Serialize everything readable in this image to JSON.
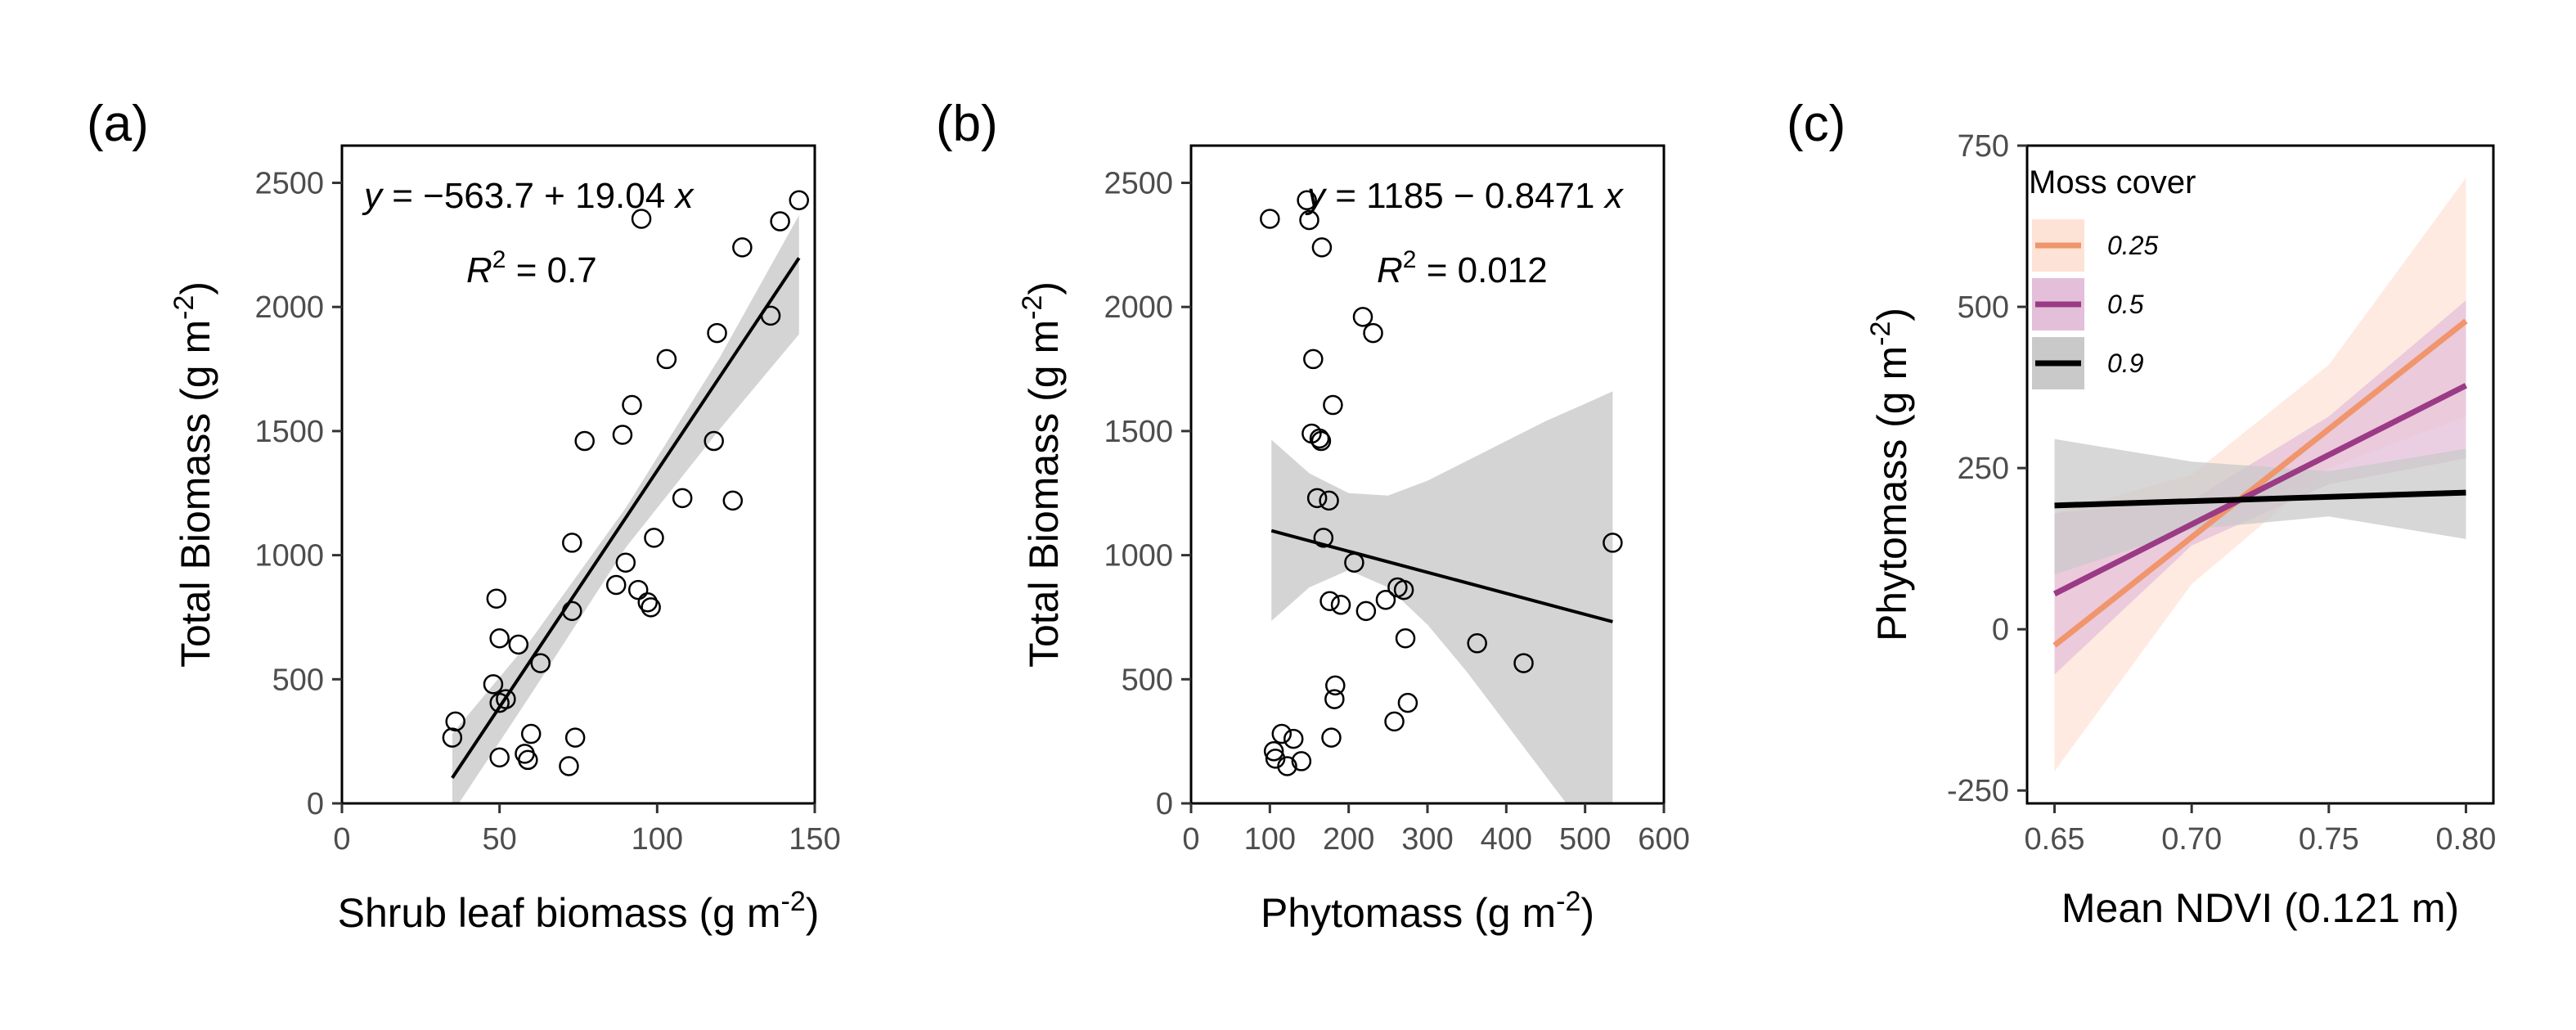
{
  "chart_data": [
    {
      "panel": "(a)",
      "type": "scatter",
      "xlabel": "Shrub leaf biomass (g m",
      "xlabel_sup": "-2",
      "xlabel_end": ")",
      "ylabel": "Total Biomass (g m",
      "ylabel_sup": "-2",
      "ylabel_end": ")",
      "xlim": [
        0,
        150
      ],
      "ylim": [
        0,
        2650
      ],
      "xticks": [
        0,
        50,
        100,
        150
      ],
      "yticks": [
        0,
        500,
        1000,
        1500,
        2000,
        2500
      ],
      "equation_y": "y",
      "equation_rest": " = −563.7 + 19.04 ",
      "equation_x": "x",
      "r2_label": "R",
      "r2_sup": "2",
      "r2_value": " = 0.7",
      "fit": {
        "intercept": -563.7,
        "slope": 19.04,
        "x_range": [
          35,
          145
        ]
      },
      "ci": {
        "x": [
          35,
          60,
          90,
          120,
          145
        ],
        "lower": [
          -40,
          440,
          1030,
          1510,
          1890
        ],
        "upper": [
          280,
          660,
          1190,
          1800,
          2370
        ]
      },
      "points": [
        [
          35,
          265
        ],
        [
          36,
          330
        ],
        [
          48,
          480
        ],
        [
          49,
          825
        ],
        [
          50,
          665
        ],
        [
          50,
          405
        ],
        [
          50,
          185
        ],
        [
          52,
          420
        ],
        [
          56,
          640
        ],
        [
          58,
          200
        ],
        [
          59,
          175
        ],
        [
          60,
          280
        ],
        [
          63,
          565
        ],
        [
          72,
          150
        ],
        [
          73,
          1050
        ],
        [
          73,
          775
        ],
        [
          74,
          265
        ],
        [
          77,
          1460
        ],
        [
          87,
          880
        ],
        [
          89,
          1485
        ],
        [
          90,
          970
        ],
        [
          92,
          1605
        ],
        [
          94,
          860
        ],
        [
          95,
          2355
        ],
        [
          97,
          810
        ],
        [
          98,
          790
        ],
        [
          99,
          1070
        ],
        [
          103,
          1790
        ],
        [
          108,
          1230
        ],
        [
          118,
          1460
        ],
        [
          119,
          1895
        ],
        [
          124,
          1220
        ],
        [
          127,
          2240
        ],
        [
          136,
          1965
        ],
        [
          139,
          2345
        ],
        [
          145,
          2430
        ]
      ]
    },
    {
      "panel": "(b)",
      "type": "scatter",
      "xlabel": "Phytomass (g m",
      "xlabel_sup": "-2",
      "xlabel_end": ")",
      "ylabel": "Total Biomass (g m",
      "ylabel_sup": "-2",
      "ylabel_end": ")",
      "xlim": [
        0,
        600
      ],
      "ylim": [
        0,
        2650
      ],
      "xticks": [
        0,
        100,
        200,
        300,
        400,
        500,
        600
      ],
      "yticks": [
        0,
        500,
        1000,
        1500,
        2000,
        2500
      ],
      "equation_y": "y",
      "equation_rest": " = 1185 − 0.8471 ",
      "equation_x": "x",
      "r2_label": "R",
      "r2_sup": "2",
      "r2_value": " = 0.012",
      "fit": {
        "intercept": 1185,
        "slope": -0.8471,
        "x_range": [
          102,
          535
        ]
      },
      "ci": {
        "x": [
          102,
          150,
          200,
          250,
          300,
          350,
          400,
          450,
          500,
          535
        ],
        "lower": [
          735,
          870,
          940,
          870,
          720,
          530,
          320,
          110,
          -100,
          -250
        ],
        "upper": [
          1465,
          1330,
          1250,
          1240,
          1300,
          1380,
          1460,
          1540,
          1610,
          1660
        ]
      },
      "points": [
        [
          100,
          2355
        ],
        [
          105,
          210
        ],
        [
          107,
          180
        ],
        [
          115,
          280
        ],
        [
          122,
          150
        ],
        [
          130,
          260
        ],
        [
          140,
          170
        ],
        [
          147,
          2430
        ],
        [
          150,
          2350
        ],
        [
          153,
          1490
        ],
        [
          155,
          1790
        ],
        [
          160,
          1230
        ],
        [
          163,
          1470
        ],
        [
          165,
          1460
        ],
        [
          166,
          2240
        ],
        [
          168,
          1070
        ],
        [
          175,
          1220
        ],
        [
          176,
          815
        ],
        [
          178,
          265
        ],
        [
          180,
          1605
        ],
        [
          182,
          420
        ],
        [
          183,
          475
        ],
        [
          190,
          800
        ],
        [
          207,
          970
        ],
        [
          218,
          1960
        ],
        [
          222,
          775
        ],
        [
          231,
          1895
        ],
        [
          247,
          820
        ],
        [
          258,
          330
        ],
        [
          262,
          870
        ],
        [
          270,
          860
        ],
        [
          272,
          665
        ],
        [
          275,
          405
        ],
        [
          363,
          645
        ],
        [
          422,
          565
        ],
        [
          535,
          1050
        ]
      ]
    },
    {
      "panel": "(c)",
      "type": "line",
      "xlabel": "Mean NDVI (0.121 m)",
      "ylabel": "Phytomass (g m",
      "ylabel_sup": "-2",
      "ylabel_end": ")",
      "xlim": [
        0.64,
        0.81
      ],
      "ylim": [
        -270,
        750
      ],
      "xticks": [
        0.65,
        0.7,
        0.75,
        0.8
      ],
      "xtick_labels": [
        "0.65",
        "0.70",
        "0.75",
        "0.80"
      ],
      "yticks": [
        -250,
        0,
        250,
        500,
        750
      ],
      "legend": {
        "title": "Moss cover",
        "placement": "top-left",
        "entries": [
          "0.25",
          "0.5",
          "0.9"
        ]
      },
      "series": [
        {
          "name": "0.25",
          "color": "#f0956c",
          "band": "#fde3d6",
          "x": [
            0.65,
            0.8
          ],
          "y": [
            -25,
            478
          ],
          "ci_x": [
            0.65,
            0.7,
            0.75,
            0.8
          ],
          "ci_lower": [
            -220,
            70,
            250,
            330
          ],
          "ci_upper": [
            180,
            240,
            410,
            700
          ]
        },
        {
          "name": "0.5",
          "color": "#9b3a85",
          "band": "#e3bfd9",
          "x": [
            0.65,
            0.8
          ],
          "y": [
            55,
            378
          ],
          "ci_x": [
            0.65,
            0.7,
            0.75,
            0.8
          ],
          "ci_lower": [
            -70,
            130,
            225,
            265
          ],
          "ci_upper": [
            180,
            200,
            330,
            510
          ]
        },
        {
          "name": "0.9",
          "color": "#000000",
          "band": "#c9c9c9",
          "x": [
            0.65,
            0.8
          ],
          "y": [
            192,
            212
          ],
          "ci_x": [
            0.65,
            0.7,
            0.75,
            0.8
          ],
          "ci_lower": [
            85,
            155,
            175,
            140
          ],
          "ci_upper": [
            295,
            260,
            245,
            280
          ]
        }
      ]
    }
  ]
}
